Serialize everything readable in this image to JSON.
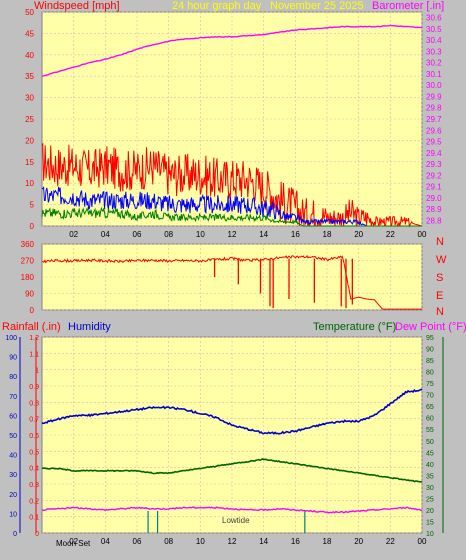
{
  "colors": {
    "background": "#c0c0c0",
    "plot_bg": "#ffffa8",
    "grid": "#e8b4b4",
    "wind": "#ff0000",
    "wind_avg": "#0000ff",
    "wind_low": "#008000",
    "baro": "#ff00ff",
    "direction": "#ff0000",
    "humidity": "#0000cc",
    "temperature": "#006400",
    "dew": "#ff00ff",
    "marker": "#008080"
  },
  "chart_data": [
    {
      "type": "line",
      "title": "24 hour graph day",
      "subtitle": "November 25 2025",
      "left_axis_label": "Windspeed [mph]",
      "right_axis_label": "Barometer [.in]",
      "x_ticks": [
        "02",
        "04",
        "06",
        "08",
        "10",
        "12",
        "14",
        "16",
        "18",
        "20",
        "22",
        "00"
      ],
      "xlim": [
        0,
        24
      ],
      "ylim": [
        0,
        50
      ],
      "y_ticks": [
        "0",
        "5",
        "10",
        "15",
        "20",
        "25",
        "30",
        "35",
        "40",
        "45",
        "50"
      ],
      "y2lim": [
        28.75,
        30.65
      ],
      "y2_ticks": [
        "28.8",
        "28.9",
        "29.0",
        "29.1",
        "29.2",
        "29.3",
        "29.4",
        "29.5",
        "29.6",
        "29.7",
        "29.8",
        "29.9",
        "30.0",
        "30.1",
        "30.2",
        "30.3",
        "30.4",
        "30.5",
        "30.6"
      ],
      "series": [
        {
          "role": "gust",
          "x": [
            0.0,
            1.0,
            2.0,
            3.0,
            4.0,
            5.0,
            6.0,
            7.0,
            8.0,
            9.0,
            10.0,
            11.0,
            12.0,
            13.0,
            14.0,
            14.5,
            15.0,
            15.5,
            16.0,
            16.5,
            17.0,
            17.5,
            18.0,
            18.5,
            19.0,
            19.5,
            20.0,
            20.5,
            21.0,
            21.5,
            22.0,
            23.0,
            24.0
          ],
          "values": [
            15,
            14,
            14,
            13,
            14,
            13,
            13,
            14,
            12,
            12,
            12,
            11,
            11,
            11,
            9,
            8,
            6,
            5,
            4,
            3,
            3,
            3,
            2,
            2,
            2,
            3,
            2,
            2,
            1,
            1,
            1,
            1,
            0
          ]
        },
        {
          "role": "average",
          "x": [
            0.0,
            1.0,
            2.0,
            3.0,
            4.0,
            5.0,
            6.0,
            7.0,
            8.0,
            9.0,
            10.0,
            11.0,
            12.0,
            13.0,
            14.0,
            14.5,
            15.0,
            15.5,
            16.0,
            16.5,
            17.0,
            17.5,
            18.0,
            18.5,
            19.0,
            19.5,
            20.0,
            20.5,
            21.0,
            22.0,
            24.0
          ],
          "values": [
            7,
            7,
            7,
            6,
            6,
            6,
            6,
            6,
            5,
            5,
            5,
            5,
            5,
            5,
            4,
            4,
            3,
            2,
            2,
            1,
            1,
            1,
            1,
            1,
            1,
            1,
            1,
            0,
            0,
            0,
            0
          ]
        },
        {
          "role": "low",
          "x": [
            0.0,
            1.0,
            2.0,
            3.0,
            4.0,
            5.0,
            6.0,
            7.0,
            8.0,
            9.0,
            10.0,
            11.0,
            12.0,
            13.0,
            14.0,
            15.0,
            16.0,
            16.5,
            17.0,
            18.0,
            19.0,
            20.0,
            24.0
          ],
          "values": [
            3,
            3,
            3,
            3,
            3,
            3,
            2,
            3,
            2,
            2,
            2,
            2,
            2,
            2,
            2,
            1,
            1,
            0,
            0,
            0,
            0,
            0,
            0
          ]
        },
        {
          "role": "barometer",
          "axis": "right",
          "x": [
            0,
            1,
            2,
            3,
            4,
            5,
            6,
            7,
            8,
            9,
            10,
            11,
            12,
            13,
            14,
            15,
            16,
            17,
            18,
            19,
            20,
            21,
            22,
            23,
            24
          ],
          "values": [
            30.08,
            30.12,
            30.16,
            30.2,
            30.23,
            30.27,
            30.32,
            30.36,
            30.39,
            30.41,
            30.42,
            30.43,
            30.43,
            30.44,
            30.45,
            30.47,
            30.49,
            30.5,
            30.51,
            30.52,
            30.52,
            30.52,
            30.53,
            30.52,
            30.51
          ]
        }
      ]
    },
    {
      "type": "line",
      "title": "",
      "y_ticks": [
        "0",
        "90",
        "180",
        "270",
        "360"
      ],
      "ylim": [
        0,
        360
      ],
      "compass_labels": [
        "N",
        "W",
        "S",
        "E",
        "N"
      ],
      "xlim": [
        0,
        24
      ],
      "series": [
        {
          "role": "direction",
          "x": [
            0,
            1,
            2,
            3,
            4,
            5,
            6,
            7,
            8,
            9,
            10,
            11,
            12,
            13,
            14,
            15,
            16,
            17,
            18,
            19,
            19.5,
            20,
            20.5,
            21,
            21.5,
            22,
            23,
            24
          ],
          "values": [
            265,
            270,
            268,
            272,
            268,
            265,
            270,
            272,
            268,
            270,
            268,
            275,
            280,
            270,
            275,
            285,
            290,
            290,
            275,
            290,
            60,
            70,
            60,
            55,
            5,
            5,
            5,
            5
          ]
        }
      ]
    },
    {
      "type": "line",
      "title": "",
      "left_axis_label": "Rainfall (.in)",
      "left_axis_label_2": "Humidity",
      "right_axis_label": "Temperature (°F)",
      "right_axis_label_2": "Dew Point (°F)",
      "x_ticks": [
        "02",
        "04",
        "06",
        "08",
        "10",
        "12",
        "14",
        "16",
        "18",
        "20",
        "22",
        "00"
      ],
      "xlim": [
        0,
        24
      ],
      "y_ticks_humidity": [
        "0",
        "10",
        "20",
        "30",
        "40",
        "50",
        "60",
        "70",
        "80",
        "90",
        "100"
      ],
      "y_ticks_rain": [
        "0",
        "0.1",
        "0.2",
        "0.3",
        "0.4",
        "0.5",
        "0.6",
        "0.7",
        "0.8",
        "0.9",
        "1",
        "1.1",
        "1.2"
      ],
      "y_ticks_temp": [
        "10",
        "15",
        "20",
        "25",
        "30",
        "35",
        "40",
        "45",
        "50",
        "55",
        "60",
        "65",
        "70",
        "75",
        "80",
        "85",
        "90",
        "95"
      ],
      "temp_lim": [
        10,
        95
      ],
      "humidity_lim": [
        0,
        100
      ],
      "annotations": [
        "Moon Set",
        "Lowtide"
      ],
      "event_hours": [
        6.7,
        7.3,
        16.6
      ],
      "series": [
        {
          "role": "humidity",
          "x": [
            0,
            1,
            2,
            3,
            4,
            5,
            6,
            7,
            8,
            9,
            10,
            11,
            12,
            13,
            14,
            15,
            16,
            17,
            18,
            19,
            20,
            21,
            22,
            23,
            24
          ],
          "values": [
            56,
            58,
            60,
            60,
            61,
            62,
            63,
            64,
            64,
            63,
            61,
            59,
            55,
            53,
            51,
            51,
            52,
            54,
            56,
            57,
            57,
            60,
            66,
            72,
            73
          ]
        },
        {
          "role": "temperature",
          "x": [
            0,
            1,
            2,
            3,
            4,
            5,
            6,
            7,
            8,
            9,
            10,
            11,
            12,
            13,
            14,
            15,
            16,
            17,
            18,
            19,
            20,
            21,
            22,
            23,
            24
          ],
          "values": [
            38,
            38,
            37,
            37,
            37,
            37,
            37,
            36,
            36,
            37,
            38,
            39,
            40,
            41,
            42,
            41,
            40,
            39,
            38,
            37,
            36,
            35,
            34,
            33,
            32
          ]
        },
        {
          "role": "dew_point",
          "x": [
            0,
            1,
            2,
            3,
            4,
            5,
            6,
            7,
            8,
            9,
            10,
            11,
            12,
            13,
            14,
            15,
            16,
            17,
            18,
            19,
            20,
            21,
            22,
            23,
            24
          ],
          "values": [
            20,
            20.5,
            21,
            20.5,
            20,
            20.5,
            21,
            20.5,
            20.5,
            21,
            21,
            21,
            20.5,
            20,
            20,
            20.5,
            20,
            19.5,
            19,
            19,
            19.5,
            20,
            20.5,
            21,
            20
          ]
        }
      ]
    }
  ]
}
